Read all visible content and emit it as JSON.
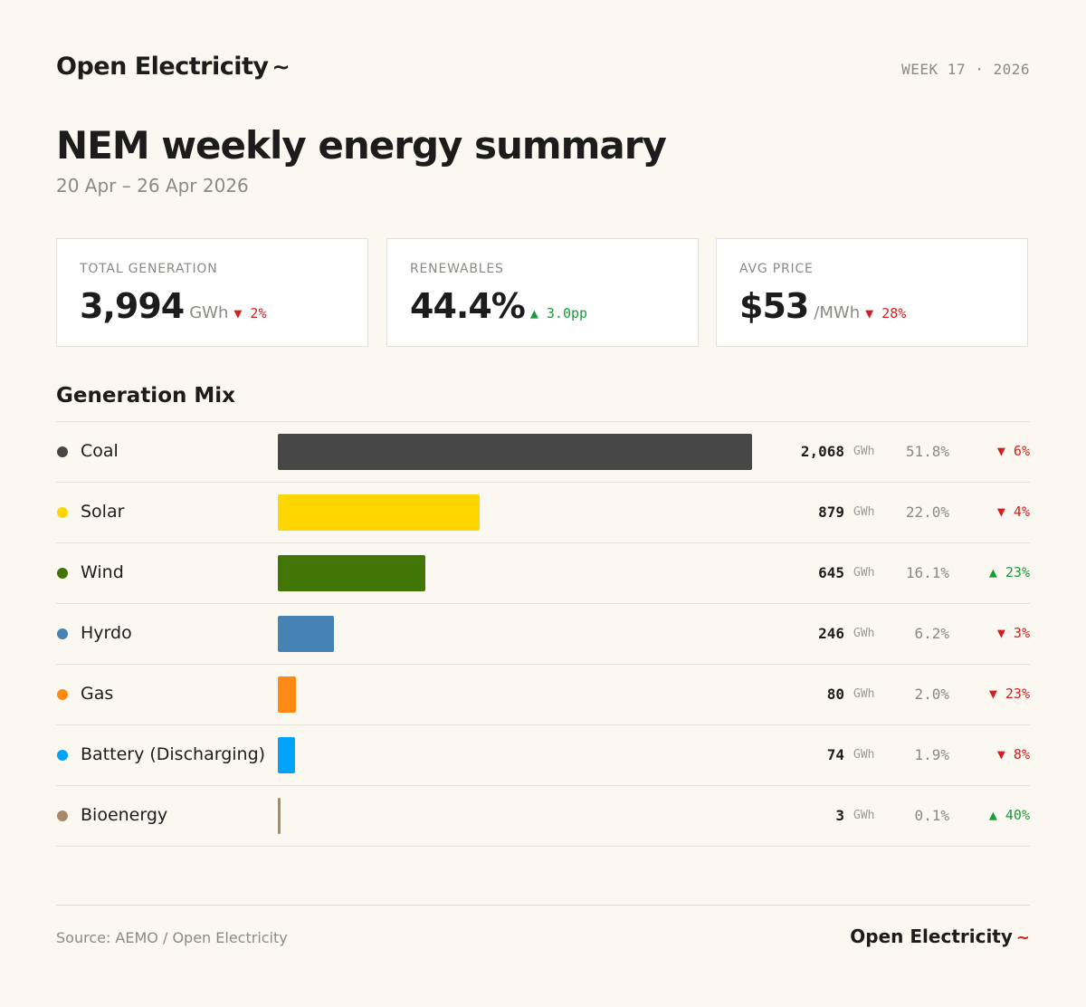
{
  "header": {
    "brand": "Open Electricity",
    "brand_mark": "~",
    "week_label": "WEEK 17 · 2026"
  },
  "title": "NEM weekly energy summary",
  "date_range": "20 Apr – 26 Apr 2026",
  "stats": [
    {
      "label": "TOTAL GENERATION",
      "value": "3,994",
      "unit": "GWh",
      "direction": "down",
      "change": "▼ 2%"
    },
    {
      "label": "RENEWABLES",
      "value": "44.4%",
      "unit": "",
      "direction": "up",
      "change": "▲ 3.0pp"
    },
    {
      "label": "AVG PRICE",
      "value": "$53",
      "unit": "/MWh",
      "direction": "down",
      "change": "▼ 28%"
    }
  ],
  "section_title": "Generation Mix",
  "chart_data": {
    "type": "bar",
    "orientation": "horizontal",
    "title": "Generation Mix",
    "unit": "GWh",
    "categories": [
      "Coal",
      "Solar",
      "Wind",
      "Hyrdo",
      "Gas",
      "Battery (Discharging)",
      "Bioenergy"
    ],
    "values": [
      2068,
      879,
      645,
      246,
      80,
      74,
      3
    ],
    "value_labels": [
      "2,068",
      "879",
      "645",
      "246",
      "80",
      "74",
      "3"
    ],
    "share_labels": [
      "51.8%",
      "22.0%",
      "16.1%",
      "6.2%",
      "2.0%",
      "1.9%",
      "0.1%"
    ],
    "change_labels": [
      "▼ 6%",
      "▼ 4%",
      "▲ 23%",
      "▼ 3%",
      "▼ 23%",
      "▼ 8%",
      "▲ 40%"
    ],
    "change_directions": [
      "down",
      "down",
      "up",
      "down",
      "down",
      "down",
      "up"
    ],
    "colors": [
      "#474747",
      "#ffd500",
      "#417505",
      "#4682b4",
      "#fe8a14",
      "#00a2fa",
      "#a58a6b"
    ],
    "xlim": [
      0,
      2068
    ],
    "grid": false
  },
  "footer": {
    "source": "Source: AEMO / Open Electricity",
    "brand": "Open Electricity",
    "brand_mark": "~"
  }
}
